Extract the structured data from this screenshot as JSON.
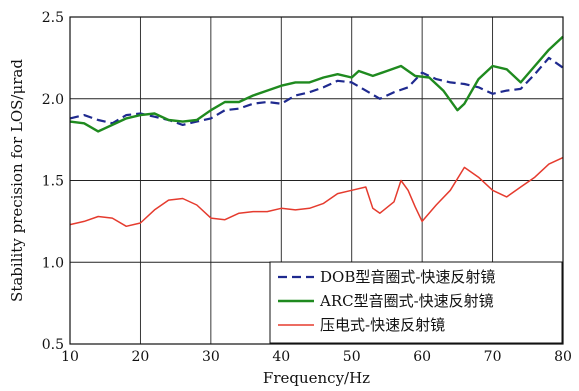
{
  "chart_data": {
    "type": "line",
    "title": "",
    "xlabel": "Frequency/Hz",
    "ylabel": "Stability precision for LOS/μrad",
    "xlim": [
      10,
      80
    ],
    "ylim": [
      0.5,
      2.5
    ],
    "xticks": [
      10,
      20,
      30,
      40,
      50,
      60,
      70,
      80
    ],
    "yticks": [
      0.5,
      1.0,
      1.5,
      2.0,
      2.5
    ],
    "xtick_labels": [
      "10",
      "20",
      "30",
      "40",
      "50",
      "60",
      "70",
      "80"
    ],
    "ytick_labels": [
      "0.5",
      "1.0",
      "1.5",
      "2.0",
      "2.5"
    ],
    "grid": true,
    "legend_position": "bottom-right",
    "series": [
      {
        "name": "DOB型音圈式-快速反射镜",
        "color": "#1f2a8f",
        "style": "dashed",
        "points": [
          [
            10,
            1.88
          ],
          [
            12,
            1.9
          ],
          [
            14,
            1.87
          ],
          [
            16,
            1.85
          ],
          [
            18,
            1.9
          ],
          [
            20,
            1.91
          ],
          [
            22,
            1.89
          ],
          [
            24,
            1.87
          ],
          [
            26,
            1.84
          ],
          [
            28,
            1.86
          ],
          [
            30,
            1.88
          ],
          [
            32,
            1.93
          ],
          [
            34,
            1.94
          ],
          [
            36,
            1.97
          ],
          [
            38,
            1.98
          ],
          [
            40,
            1.97
          ],
          [
            42,
            2.02
          ],
          [
            44,
            2.04
          ],
          [
            46,
            2.07
          ],
          [
            48,
            2.11
          ],
          [
            50,
            2.1
          ],
          [
            52,
            2.05
          ],
          [
            54,
            2.0
          ],
          [
            56,
            2.04
          ],
          [
            58,
            2.07
          ],
          [
            60,
            2.16
          ],
          [
            62,
            2.12
          ],
          [
            64,
            2.1
          ],
          [
            66,
            2.09
          ],
          [
            68,
            2.07
          ],
          [
            70,
            2.03
          ],
          [
            72,
            2.05
          ],
          [
            74,
            2.06
          ],
          [
            76,
            2.15
          ],
          [
            78,
            2.25
          ],
          [
            79,
            2.22
          ],
          [
            80,
            2.19
          ]
        ]
      },
      {
        "name": "ARC型音圈式-快速反射镜",
        "color": "#1f8a1f",
        "style": "solid",
        "points": [
          [
            10,
            1.86
          ],
          [
            12,
            1.85
          ],
          [
            14,
            1.8
          ],
          [
            16,
            1.84
          ],
          [
            18,
            1.88
          ],
          [
            20,
            1.9
          ],
          [
            22,
            1.91
          ],
          [
            24,
            1.87
          ],
          [
            26,
            1.86
          ],
          [
            28,
            1.87
          ],
          [
            30,
            1.93
          ],
          [
            32,
            1.98
          ],
          [
            34,
            1.98
          ],
          [
            36,
            2.02
          ],
          [
            38,
            2.05
          ],
          [
            40,
            2.08
          ],
          [
            42,
            2.1
          ],
          [
            44,
            2.1
          ],
          [
            46,
            2.13
          ],
          [
            48,
            2.15
          ],
          [
            50,
            2.13
          ],
          [
            51,
            2.17
          ],
          [
            53,
            2.14
          ],
          [
            55,
            2.17
          ],
          [
            57,
            2.2
          ],
          [
            59,
            2.14
          ],
          [
            61,
            2.13
          ],
          [
            63,
            2.05
          ],
          [
            65,
            1.93
          ],
          [
            66,
            1.97
          ],
          [
            68,
            2.12
          ],
          [
            70,
            2.2
          ],
          [
            72,
            2.18
          ],
          [
            74,
            2.1
          ],
          [
            76,
            2.2
          ],
          [
            78,
            2.3
          ],
          [
            80,
            2.38
          ]
        ]
      },
      {
        "name": "压电式-快速反射镜",
        "color": "#e53b2e",
        "style": "solid",
        "points": [
          [
            10,
            1.23
          ],
          [
            12,
            1.25
          ],
          [
            14,
            1.28
          ],
          [
            16,
            1.27
          ],
          [
            18,
            1.22
          ],
          [
            20,
            1.24
          ],
          [
            22,
            1.32
          ],
          [
            24,
            1.38
          ],
          [
            26,
            1.39
          ],
          [
            28,
            1.35
          ],
          [
            30,
            1.27
          ],
          [
            32,
            1.26
          ],
          [
            34,
            1.3
          ],
          [
            36,
            1.31
          ],
          [
            38,
            1.31
          ],
          [
            40,
            1.33
          ],
          [
            42,
            1.32
          ],
          [
            44,
            1.33
          ],
          [
            46,
            1.36
          ],
          [
            48,
            1.42
          ],
          [
            50,
            1.44
          ],
          [
            52,
            1.46
          ],
          [
            53,
            1.33
          ],
          [
            54,
            1.3
          ],
          [
            56,
            1.37
          ],
          [
            57,
            1.5
          ],
          [
            58,
            1.44
          ],
          [
            59,
            1.34
          ],
          [
            60,
            1.25
          ],
          [
            62,
            1.35
          ],
          [
            64,
            1.44
          ],
          [
            66,
            1.58
          ],
          [
            68,
            1.52
          ],
          [
            70,
            1.44
          ],
          [
            72,
            1.4
          ],
          [
            74,
            1.46
          ],
          [
            76,
            1.52
          ],
          [
            78,
            1.6
          ],
          [
            80,
            1.64
          ]
        ]
      }
    ]
  }
}
